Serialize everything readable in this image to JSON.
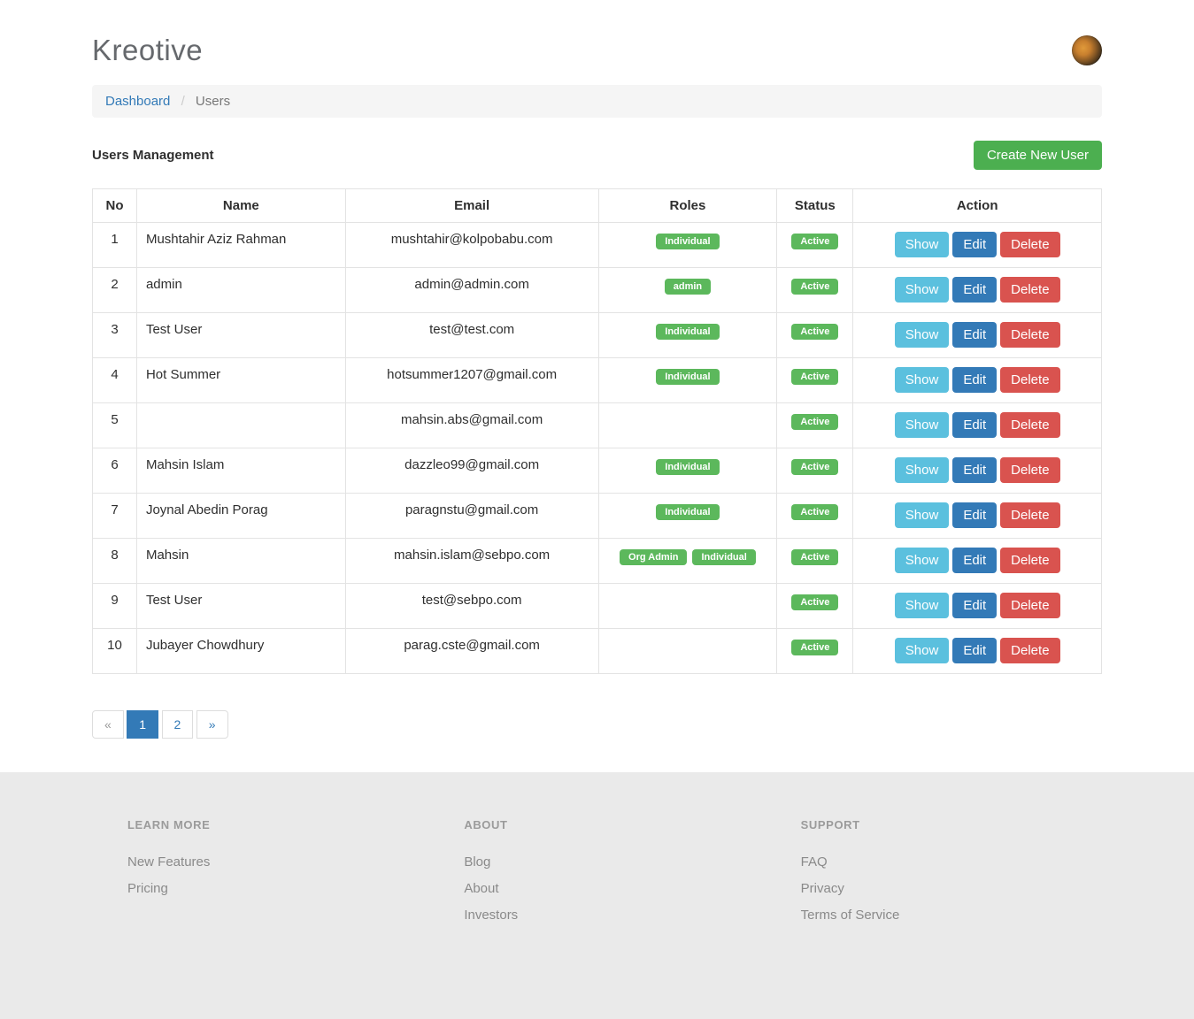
{
  "brand": "Kreotive",
  "breadcrumb": {
    "link": "Dashboard",
    "separator": "/",
    "current": "Users"
  },
  "page": {
    "title": "Users Management",
    "create_button": "Create New User"
  },
  "table": {
    "headers": [
      "No",
      "Name",
      "Email",
      "Roles",
      "Status",
      "Action"
    ],
    "actions": {
      "show": "Show",
      "edit": "Edit",
      "delete": "Delete"
    },
    "rows": [
      {
        "no": "1",
        "name": "Mushtahir Aziz Rahman",
        "email": "mushtahir@kolpobabu.com",
        "roles": [
          "Individual"
        ],
        "status": "Active"
      },
      {
        "no": "2",
        "name": "admin",
        "email": "admin@admin.com",
        "roles": [
          "admin"
        ],
        "status": "Active"
      },
      {
        "no": "3",
        "name": "Test User",
        "email": "test@test.com",
        "roles": [
          "Individual"
        ],
        "status": "Active"
      },
      {
        "no": "4",
        "name": "Hot Summer",
        "email": "hotsummer1207@gmail.com",
        "roles": [
          "Individual"
        ],
        "status": "Active"
      },
      {
        "no": "5",
        "name": "",
        "email": "mahsin.abs@gmail.com",
        "roles": [],
        "status": "Active"
      },
      {
        "no": "6",
        "name": "Mahsin Islam",
        "email": "dazzleo99@gmail.com",
        "roles": [
          "Individual"
        ],
        "status": "Active"
      },
      {
        "no": "7",
        "name": "Joynal Abedin Porag",
        "email": "paragnstu@gmail.com",
        "roles": [
          "Individual"
        ],
        "status": "Active"
      },
      {
        "no": "8",
        "name": "Mahsin",
        "email": "mahsin.islam@sebpo.com",
        "roles": [
          "Org Admin",
          "Individual"
        ],
        "status": "Active"
      },
      {
        "no": "9",
        "name": "Test User",
        "email": "test@sebpo.com",
        "roles": [],
        "status": "Active"
      },
      {
        "no": "10",
        "name": "Jubayer Chowdhury",
        "email": "parag.cste@gmail.com",
        "roles": [],
        "status": "Active"
      }
    ]
  },
  "pagination": {
    "prev": "«",
    "pages": [
      "1",
      "2"
    ],
    "active_page": "1",
    "next": "»"
  },
  "footer": {
    "columns": [
      {
        "heading": "LEARN MORE",
        "links": [
          "New Features",
          "Pricing"
        ]
      },
      {
        "heading": "ABOUT",
        "links": [
          "Blog",
          "About",
          "Investors"
        ]
      },
      {
        "heading": "SUPPORT",
        "links": [
          "FAQ",
          "Privacy",
          "Terms of Service"
        ]
      }
    ]
  },
  "colors": {
    "success_badge": "#5cb85c",
    "create_button": "#4caf50",
    "show_button": "#5bc0de",
    "edit_button": "#337ab7",
    "delete_button": "#d9534f",
    "link": "#337ab7",
    "breadcrumb_bg": "#f5f5f5",
    "footer_bg": "#eaeaea"
  }
}
